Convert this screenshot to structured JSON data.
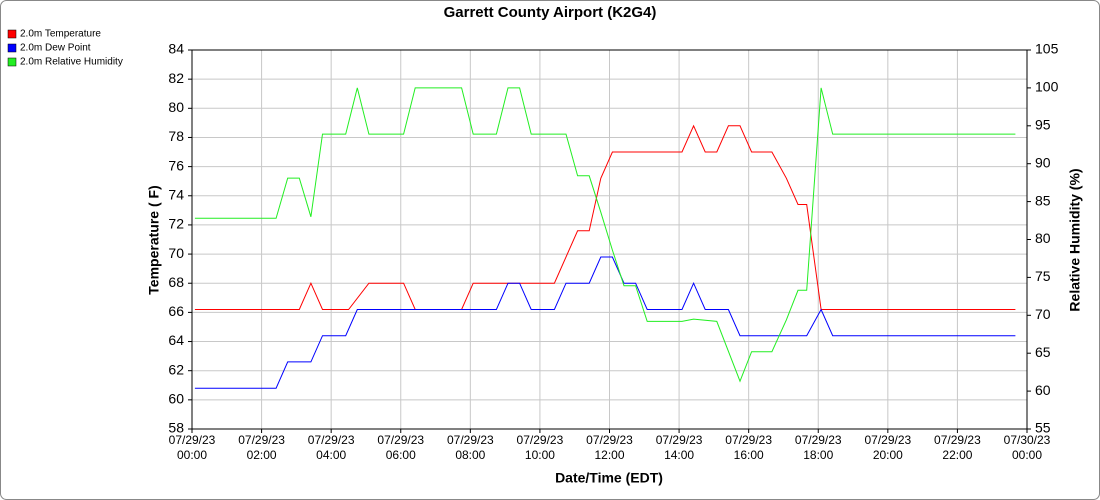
{
  "chart_data": {
    "type": "line",
    "title": "Garrett County Airport (K2G4)",
    "x_label": "Date/Time (EDT)",
    "y_label": "Temperature ( F)",
    "y2_label": "Relative Humidity (%)",
    "legend": "top-left",
    "grid": true,
    "xlim": [
      "2023-07-29T00:00",
      "2023-07-30T00:00"
    ],
    "xticks": [
      {
        "value": "2023-07-29T00:00",
        "label": [
          "07/29/23",
          "00:00"
        ]
      },
      {
        "value": "2023-07-29T02:00",
        "label": [
          "07/29/23",
          "02:00"
        ]
      },
      {
        "value": "2023-07-29T04:00",
        "label": [
          "07/29/23",
          "04:00"
        ]
      },
      {
        "value": "2023-07-29T06:00",
        "label": [
          "07/29/23",
          "06:00"
        ]
      },
      {
        "value": "2023-07-29T08:00",
        "label": [
          "07/29/23",
          "08:00"
        ]
      },
      {
        "value": "2023-07-29T10:00",
        "label": [
          "07/29/23",
          "10:00"
        ]
      },
      {
        "value": "2023-07-29T12:00",
        "label": [
          "07/29/23",
          "12:00"
        ]
      },
      {
        "value": "2023-07-29T14:00",
        "label": [
          "07/29/23",
          "14:00"
        ]
      },
      {
        "value": "2023-07-29T16:00",
        "label": [
          "07/29/23",
          "16:00"
        ]
      },
      {
        "value": "2023-07-29T18:00",
        "label": [
          "07/29/23",
          "18:00"
        ]
      },
      {
        "value": "2023-07-29T20:00",
        "label": [
          "07/29/23",
          "20:00"
        ]
      },
      {
        "value": "2023-07-29T22:00",
        "label": [
          "07/29/23",
          "22:00"
        ]
      },
      {
        "value": "2023-07-30T00:00",
        "label": [
          "07/30/23",
          "00:00"
        ]
      }
    ],
    "ylim": [
      58,
      84
    ],
    "yticks": [
      58,
      60,
      62,
      64,
      66,
      68,
      70,
      72,
      74,
      76,
      78,
      80,
      82,
      84
    ],
    "y2lim": [
      55,
      105
    ],
    "y2ticks": [
      55,
      60,
      65,
      70,
      75,
      80,
      85,
      90,
      95,
      100,
      105
    ],
    "series": [
      {
        "name": "2.0m Temperature",
        "color": "#ff0000",
        "axis": "y",
        "x": [
          "2023-07-29T00:05",
          "2023-07-29T03:05",
          "2023-07-29T03:25",
          "2023-07-29T03:45",
          "2023-07-29T04:30",
          "2023-07-29T05:05",
          "2023-07-29T06:05",
          "2023-07-29T06:25",
          "2023-07-29T07:45",
          "2023-07-29T08:05",
          "2023-07-29T10:25",
          "2023-07-29T11:05",
          "2023-07-29T11:25",
          "2023-07-29T11:45",
          "2023-07-29T12:05",
          "2023-07-29T14:05",
          "2023-07-29T14:25",
          "2023-07-29T14:45",
          "2023-07-29T15:05",
          "2023-07-29T15:25",
          "2023-07-29T15:45",
          "2023-07-29T16:05",
          "2023-07-29T16:40",
          "2023-07-29T17:05",
          "2023-07-29T17:25",
          "2023-07-29T17:40",
          "2023-07-29T18:05",
          "2023-07-29T23:40"
        ],
        "values": [
          66.2,
          66.2,
          68,
          66.2,
          66.2,
          68,
          68,
          66.2,
          66.2,
          68,
          68,
          71.6,
          71.6,
          75.2,
          77,
          77,
          78.8,
          77,
          77,
          78.8,
          78.8,
          77,
          77,
          75.2,
          73.4,
          73.4,
          66.2,
          66.2
        ]
      },
      {
        "name": "2.0m Dew Point",
        "color": "#0000ff",
        "axis": "y",
        "x": [
          "2023-07-29T00:05",
          "2023-07-29T02:25",
          "2023-07-29T02:45",
          "2023-07-29T03:25",
          "2023-07-29T03:45",
          "2023-07-29T04:25",
          "2023-07-29T04:45",
          "2023-07-29T08:45",
          "2023-07-29T09:05",
          "2023-07-29T09:25",
          "2023-07-29T09:45",
          "2023-07-29T10:25",
          "2023-07-29T10:45",
          "2023-07-29T11:25",
          "2023-07-29T11:45",
          "2023-07-29T12:05",
          "2023-07-29T12:25",
          "2023-07-29T12:45",
          "2023-07-29T13:05",
          "2023-07-29T14:05",
          "2023-07-29T14:25",
          "2023-07-29T14:45",
          "2023-07-29T15:25",
          "2023-07-29T15:45",
          "2023-07-29T17:40",
          "2023-07-29T18:05",
          "2023-07-29T18:25",
          "2023-07-29T23:40"
        ],
        "values": [
          60.8,
          60.8,
          62.6,
          62.6,
          64.4,
          64.4,
          66.2,
          66.2,
          68,
          68,
          66.2,
          66.2,
          68,
          68,
          69.8,
          69.8,
          68,
          68,
          66.2,
          66.2,
          68,
          66.2,
          66.2,
          64.4,
          64.4,
          66.2,
          64.4,
          64.4
        ]
      },
      {
        "name": "2.0m Relative Humidity",
        "color": "#22ee22",
        "axis": "y2",
        "x": [
          "2023-07-29T00:05",
          "2023-07-29T02:25",
          "2023-07-29T02:45",
          "2023-07-29T03:05",
          "2023-07-29T03:25",
          "2023-07-29T03:45",
          "2023-07-29T04:25",
          "2023-07-29T04:45",
          "2023-07-29T05:05",
          "2023-07-29T06:05",
          "2023-07-29T06:25",
          "2023-07-29T07:45",
          "2023-07-29T08:05",
          "2023-07-29T08:45",
          "2023-07-29T09:05",
          "2023-07-29T09:25",
          "2023-07-29T09:45",
          "2023-07-29T10:45",
          "2023-07-29T11:05",
          "2023-07-29T11:25",
          "2023-07-29T11:45",
          "2023-07-29T12:05",
          "2023-07-29T12:25",
          "2023-07-29T12:45",
          "2023-07-29T13:05",
          "2023-07-29T14:05",
          "2023-07-29T14:25",
          "2023-07-29T15:05",
          "2023-07-29T15:45",
          "2023-07-29T16:05",
          "2023-07-29T16:40",
          "2023-07-29T17:05",
          "2023-07-29T17:25",
          "2023-07-29T17:40",
          "2023-07-29T18:05",
          "2023-07-29T18:25",
          "2023-07-29T23:40"
        ],
        "values": [
          82.8,
          82.8,
          88.1,
          88.1,
          83,
          93.9,
          93.9,
          100,
          93.9,
          93.9,
          100,
          100,
          93.9,
          93.9,
          100,
          100,
          93.9,
          93.9,
          88.4,
          88.4,
          83.6,
          78.6,
          73.9,
          73.9,
          69.2,
          69.2,
          69.5,
          69.2,
          61.3,
          65.2,
          65.2,
          69.4,
          73.3,
          73.3,
          100,
          93.9,
          93.9
        ]
      }
    ]
  }
}
